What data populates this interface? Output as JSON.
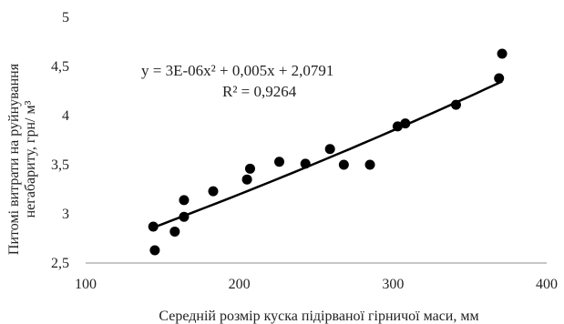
{
  "chart_data": {
    "type": "scatter",
    "xlabel": "Середній розмір куска підірваної гірничої маси, мм",
    "ylabel_line1": "Питомі витрати на руйнування",
    "ylabel_line2": "негабариту, грн/ м³",
    "xlim": [
      100,
      400
    ],
    "ylim": [
      2.5,
      5
    ],
    "x_ticks": [
      100,
      200,
      300,
      400
    ],
    "y_ticks": [
      "2,5",
      "3",
      "3,5",
      "4",
      "4,5",
      "5"
    ],
    "y_tick_values": [
      2.5,
      3,
      3.5,
      4,
      4.5,
      5
    ],
    "grid": false,
    "trendline": {
      "equation": "y = 3E-06x² + 0,005x + 2,0791",
      "r_squared": "R² = 0,9264",
      "coefficients": [
        3e-06,
        0.005,
        2.0791
      ]
    },
    "points": [
      {
        "x": 144,
        "y": 2.87
      },
      {
        "x": 145,
        "y": 2.63
      },
      {
        "x": 158,
        "y": 2.82
      },
      {
        "x": 164,
        "y": 2.97
      },
      {
        "x": 164,
        "y": 3.14
      },
      {
        "x": 183,
        "y": 3.23
      },
      {
        "x": 205,
        "y": 3.35
      },
      {
        "x": 207,
        "y": 3.46
      },
      {
        "x": 226,
        "y": 3.53
      },
      {
        "x": 243,
        "y": 3.51
      },
      {
        "x": 259,
        "y": 3.66
      },
      {
        "x": 268,
        "y": 3.5
      },
      {
        "x": 285,
        "y": 3.5
      },
      {
        "x": 303,
        "y": 3.89
      },
      {
        "x": 308,
        "y": 3.92
      },
      {
        "x": 341,
        "y": 4.11
      },
      {
        "x": 369,
        "y": 4.38
      },
      {
        "x": 371,
        "y": 4.63
      }
    ]
  }
}
